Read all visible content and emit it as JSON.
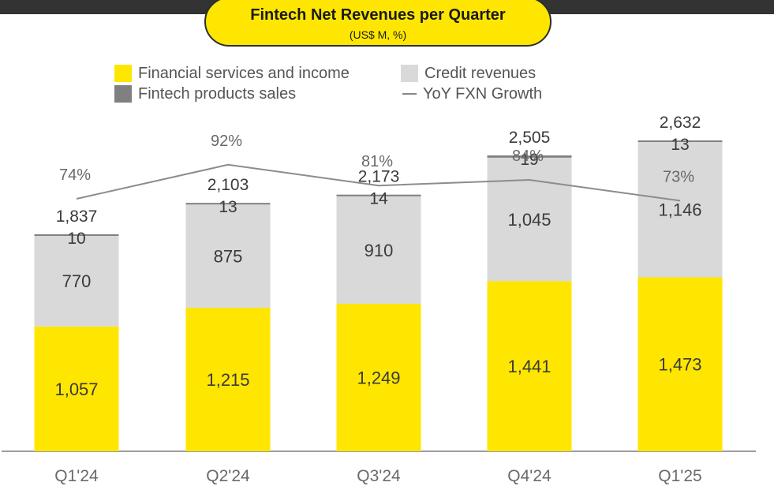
{
  "colors": {
    "financial": "#ffe600",
    "credit": "#d9d9d9",
    "products": "#808080",
    "growth_line": "#8c8c8c",
    "axis": "#7f7f7f",
    "title_bg": "#ffe600",
    "top_bar": "#333333"
  },
  "chart_data": {
    "type": "bar",
    "stacked": true,
    "title": "Fintech Net Revenues per Quarter",
    "subtitle": "(US$ M, %)",
    "categories": [
      "Q1'24",
      "Q2'24",
      "Q3'24",
      "Q4'24",
      "Q1'25"
    ],
    "series": [
      {
        "name": "Financial services and income",
        "values": [
          1057,
          1215,
          1249,
          1441,
          1473
        ],
        "labels": [
          "1,057",
          "1,215",
          "1,249",
          "1,441",
          "1,473"
        ]
      },
      {
        "name": "Credit revenues",
        "values": [
          770,
          875,
          910,
          1045,
          1146
        ],
        "labels": [
          "770",
          "875",
          "910",
          "1,045",
          "1,146"
        ]
      },
      {
        "name": "Fintech products sales",
        "values": [
          10,
          13,
          14,
          19,
          13
        ],
        "labels": [
          "10",
          "13",
          "14",
          "19",
          "13"
        ]
      }
    ],
    "totals": [
      1837,
      2103,
      2173,
      2505,
      2632
    ],
    "total_labels": [
      "1,837",
      "2,103",
      "2,173",
      "2,505",
      "2,632"
    ],
    "line_series": {
      "name": "YoY FXN Growth",
      "values": [
        74,
        92,
        81,
        84,
        73
      ],
      "labels": [
        "74%",
        "92%",
        "81%",
        "84%",
        "73%"
      ]
    },
    "legend": [
      {
        "label": "Financial services and income",
        "kind": "box",
        "color": "#ffe600"
      },
      {
        "label": "Credit revenues",
        "kind": "box",
        "color": "#d9d9d9"
      },
      {
        "label": "Fintech products sales",
        "kind": "box",
        "color": "#808080"
      },
      {
        "label": "YoY FXN Growth",
        "kind": "line",
        "color": "#8c8c8c"
      }
    ],
    "legend_position": "top",
    "ylim": [
      0,
      2850
    ],
    "grid": false
  }
}
